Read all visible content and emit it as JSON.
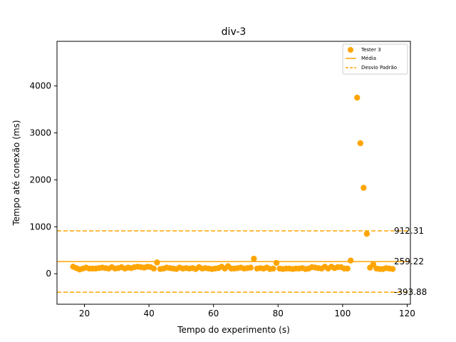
{
  "chart_data": {
    "type": "scatter",
    "title": "div-3",
    "xlabel": "Tempo do experimento (s)",
    "ylabel": "Tempo até conexão (ms)",
    "xlim": [
      11.5,
      121
    ],
    "ylim": [
      -650,
      4950
    ],
    "xticks": [
      20,
      40,
      60,
      80,
      100,
      120
    ],
    "yticks": [
      0,
      1000,
      2000,
      3000,
      4000
    ],
    "grid": false,
    "legend_position": "top-right",
    "colors": {
      "series": "#ffa500",
      "axis": "#000000"
    },
    "series": [
      {
        "name": "Tester 3",
        "x": [
          16.5,
          17.5,
          18.5,
          19.5,
          20.5,
          21.5,
          22.5,
          23.5,
          24.5,
          25.5,
          26.5,
          27.5,
          28.5,
          29.5,
          30.5,
          31.5,
          32.5,
          33.5,
          34.5,
          35.5,
          36.5,
          37.5,
          38.5,
          39.5,
          40.5,
          41.5,
          42.5,
          43.5,
          44.5,
          45.5,
          46.5,
          47.5,
          48.5,
          49.5,
          50.5,
          51.5,
          52.5,
          53.5,
          54.5,
          55.5,
          56.5,
          57.5,
          58.5,
          59.5,
          60.5,
          61.5,
          62.5,
          63.5,
          64.5,
          65.5,
          66.5,
          67.5,
          68.5,
          69.5,
          70.5,
          71.5,
          72.5,
          73.5,
          74.5,
          75.5,
          76.5,
          77.5,
          78.5,
          79.5,
          80.5,
          81.5,
          82.5,
          83.5,
          84.5,
          85.5,
          86.5,
          87.5,
          88.5,
          89.5,
          90.5,
          91.5,
          92.5,
          93.5,
          94.5,
          95.5,
          96.5,
          97.5,
          98.5,
          99.5,
          100.5,
          101.5,
          102.5,
          104.5,
          105.5,
          106.5,
          107.5,
          108.5,
          109.5,
          110.5,
          111.5,
          112.5,
          113.5,
          114.5,
          115.5
        ],
        "y": [
          150,
          120,
          90,
          110,
          130,
          110,
          110,
          110,
          120,
          130,
          120,
          110,
          140,
          110,
          120,
          140,
          110,
          130,
          120,
          140,
          150,
          140,
          130,
          150,
          140,
          110,
          240,
          100,
          110,
          130,
          120,
          110,
          100,
          130,
          110,
          120,
          110,
          120,
          100,
          140,
          110,
          120,
          110,
          100,
          110,
          120,
          150,
          110,
          160,
          110,
          110,
          120,
          130,
          110,
          120,
          130,
          320,
          110,
          120,
          110,
          130,
          100,
          110,
          230,
          110,
          100,
          110,
          110,
          100,
          110,
          110,
          120,
          100,
          110,
          140,
          130,
          120,
          110,
          150,
          110,
          150,
          120,
          140,
          140,
          110,
          110,
          280,
          3750,
          2780,
          1830,
          850,
          130,
          200,
          110,
          100,
          100,
          120,
          110,
          100
        ]
      }
    ],
    "reference_lines": [
      {
        "name": "Média",
        "value": 259.22,
        "label": "259.22",
        "style": "solid"
      },
      {
        "name": "Desvio Padrão",
        "value": 912.31,
        "label": "912.31",
        "style": "dashed"
      },
      {
        "value": -393.88,
        "label": "-393.88",
        "style": "dashed"
      }
    ]
  }
}
